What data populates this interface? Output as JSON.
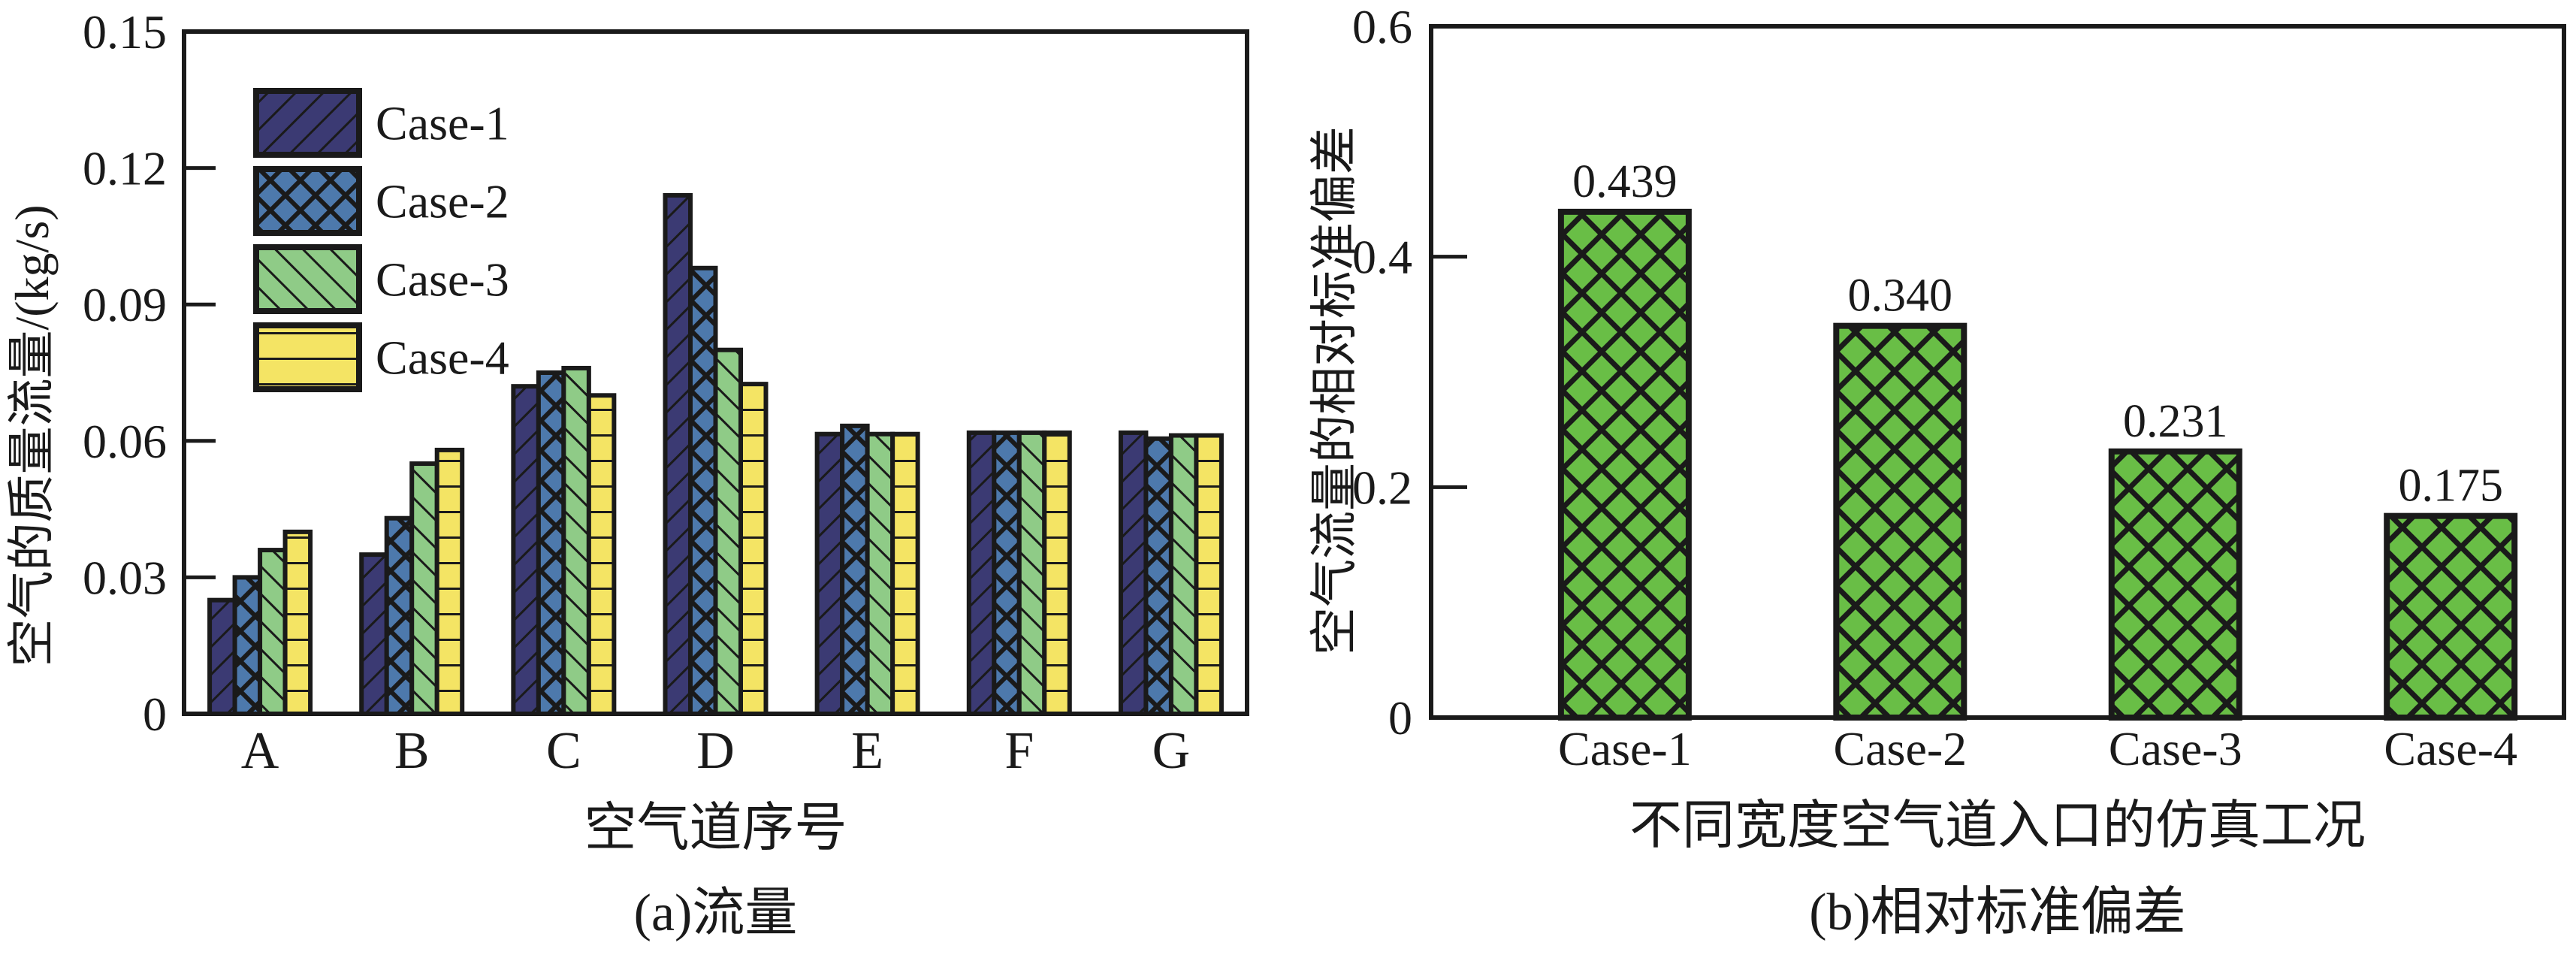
{
  "style": {
    "background": "#ffffff",
    "line_color": "#1a1a1a",
    "case1_color": "#3b3a73",
    "case2_color": "#4d79ac",
    "case3_color": "#8fcb87",
    "case4_color": "#f4e464",
    "panel_b_bar_color": "#69be46"
  },
  "chart_data": [
    {
      "type": "bar",
      "panel": "a",
      "caption": "(a)流量",
      "xlabel": "空气道序号",
      "ylabel": "空气的质量流量/(kg/s)",
      "categories": [
        "A",
        "B",
        "C",
        "D",
        "E",
        "F",
        "G"
      ],
      "series": [
        {
          "name": "Case-1",
          "color": "#3b3a73",
          "hatch": "/",
          "values": [
            0.025,
            0.035,
            0.072,
            0.114,
            0.0615,
            0.0618,
            0.0618
          ]
        },
        {
          "name": "Case-2",
          "color": "#4d79ac",
          "hatch": "x",
          "values": [
            0.03,
            0.043,
            0.075,
            0.098,
            0.0633,
            0.0618,
            0.0605
          ]
        },
        {
          "name": "Case-3",
          "color": "#8fcb87",
          "hatch": "\\",
          "values": [
            0.036,
            0.055,
            0.076,
            0.08,
            0.0615,
            0.0618,
            0.0612
          ]
        },
        {
          "name": "Case-4",
          "color": "#f4e464",
          "hatch": "-",
          "values": [
            0.04,
            0.058,
            0.07,
            0.0725,
            0.0615,
            0.0618,
            0.0612
          ]
        }
      ],
      "ylim": [
        0,
        0.15
      ],
      "yticks": [
        0,
        0.03,
        0.06,
        0.09,
        0.12,
        0.15
      ],
      "ytick_labels": [
        "0",
        "0.03",
        "0.06",
        "0.09",
        "0.12",
        "0.15"
      ],
      "legend_position": "upper-left-inside",
      "legend_entries": [
        "Case-1",
        "Case-2",
        "Case-3",
        "Case-4"
      ],
      "grid": false
    },
    {
      "type": "bar",
      "panel": "b",
      "caption": "(b)相对标准偏差",
      "xlabel": "不同宽度空气道入口的仿真工况",
      "ylabel": "空气流量的相对标准偏差",
      "categories": [
        "Case-1",
        "Case-2",
        "Case-3",
        "Case-4"
      ],
      "values": [
        0.439,
        0.34,
        0.231,
        0.175
      ],
      "bar_labels": [
        "0.439",
        "0.340",
        "0.231",
        "0.175"
      ],
      "bar_color": "#69be46",
      "hatch": "x",
      "ylim": [
        0,
        0.6
      ],
      "yticks": [
        0,
        0.2,
        0.4,
        0.6
      ],
      "ytick_labels": [
        "0",
        "0.2",
        "0.4",
        "0.6"
      ],
      "grid": false
    }
  ]
}
